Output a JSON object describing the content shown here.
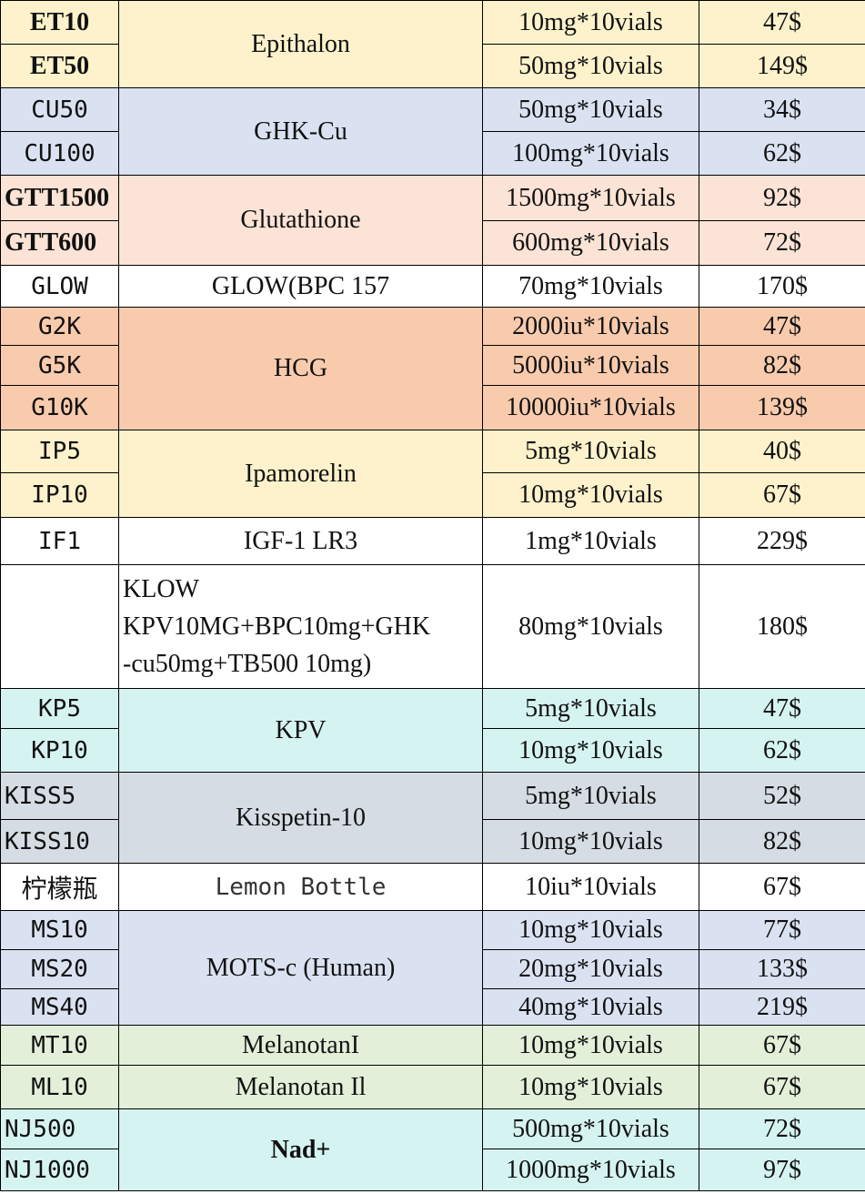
{
  "rows": [
    {
      "code": "ET10",
      "name": "Epithalon",
      "qty": "10mg*10vials",
      "price": "47$"
    },
    {
      "code": "ET50",
      "qty": "50mg*10vials",
      "price": "149$"
    },
    {
      "code": "CU50",
      "name": "GHK-Cu",
      "qty": "50mg*10vials",
      "price": "34$"
    },
    {
      "code": "CU100",
      "qty": "100mg*10vials",
      "price": "62$"
    },
    {
      "code": "GTT1500",
      "name": "Glutathione",
      "qty": "1500mg*10vials",
      "price": "92$"
    },
    {
      "code": "GTT600",
      "qty": "600mg*10vials",
      "price": "72$"
    },
    {
      "code": "GLOW",
      "name": "GLOW(BPC 157",
      "qty": "70mg*10vials",
      "price": "170$"
    },
    {
      "code": "G2K",
      "name": "HCG",
      "qty": "2000iu*10vials",
      "price": "47$"
    },
    {
      "code": "G5K",
      "qty": "5000iu*10vials",
      "price": "82$"
    },
    {
      "code": "G10K",
      "qty": "10000iu*10vials",
      "price": "139$"
    },
    {
      "code": "IP5",
      "name": "Ipamorelin",
      "qty": "5mg*10vials",
      "price": "40$"
    },
    {
      "code": "IP10",
      "qty": "10mg*10vials",
      "price": "67$"
    },
    {
      "code": "IF1",
      "name": "IGF-1 LR3",
      "qty": "1mg*10vials",
      "price": "229$"
    },
    {
      "code": "",
      "name_lines": [
        "KLOW",
        "KPV10MG+BPC10mg+GHK",
        "-cu50mg+TB500 10mg)"
      ],
      "qty": "80mg*10vials",
      "price": "180$"
    },
    {
      "code": "KP5",
      "name": "KPV",
      "qty": "5mg*10vials",
      "price": "47$"
    },
    {
      "code": "KP10",
      "qty": "10mg*10vials",
      "price": "62$"
    },
    {
      "code": "KISS5",
      "name": "Kisspetin-10",
      "qty": "5mg*10vials",
      "price": "52$"
    },
    {
      "code": "KISS10",
      "qty": "10mg*10vials",
      "price": "82$"
    },
    {
      "code": "柠檬瓶",
      "name": "Lemon Bottle",
      "qty": "10iu*10vials",
      "price": "67$"
    },
    {
      "code": "MS10",
      "name": "MOTS-c (Human)",
      "qty": "10mg*10vials",
      "price": "77$"
    },
    {
      "code": "MS20",
      "qty": "20mg*10vials",
      "price": "133$"
    },
    {
      "code": "MS40",
      "qty": "40mg*10vials",
      "price": "219$"
    },
    {
      "code": "MT10",
      "name": "MelanotanI",
      "qty": "10mg*10vials",
      "price": "67$"
    },
    {
      "code": "ML10",
      "name": "Melanotan Il",
      "qty": "10mg*10vials",
      "price": "67$"
    },
    {
      "code": "NJ500",
      "name": "Nad+",
      "qty": "500mg*10vials",
      "price": "72$"
    },
    {
      "code": "NJ1000",
      "qty": "1000mg*10vials",
      "price": "97$"
    }
  ],
  "colors": {
    "yellow": "#fdf2cb",
    "blue": "#dae2f2",
    "peach": "#fbe3d5",
    "white": "#ffffff",
    "orange": "#f8cbad",
    "cyan": "#d5f3f1",
    "gray": "#d6dce4",
    "green": "#e3efd9"
  }
}
